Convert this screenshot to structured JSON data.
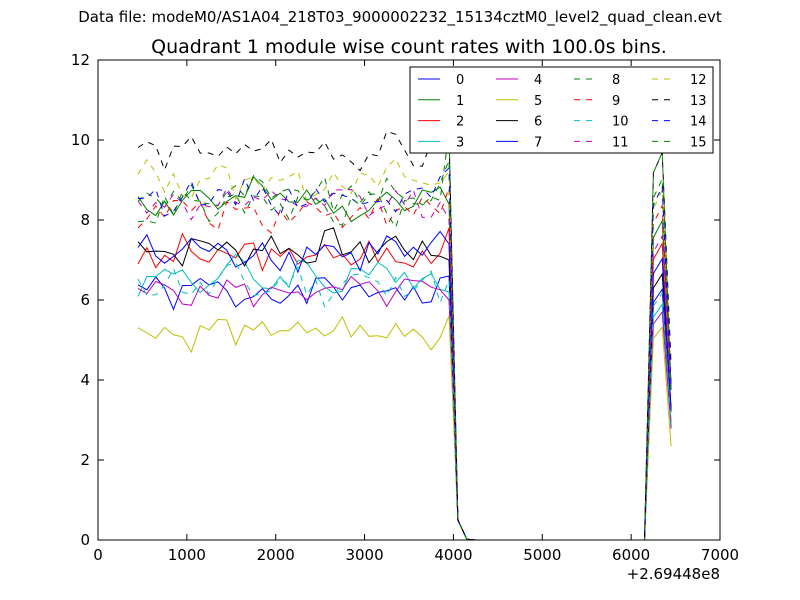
{
  "figure": {
    "caption": "Data file: modeM0/AS1A04_218T03_9000002232_15134cztM0_level2_quad_clean.evt"
  },
  "chart_data": {
    "type": "line",
    "title": "Quadrant 1 module wise count rates with 100.0s bins.",
    "xlabel": "",
    "ylabel": "",
    "xlim": [
      0,
      7000
    ],
    "ylim": [
      0,
      12
    ],
    "x_offset_label": "+2.69448e8",
    "x_ticks": [
      "0",
      "1000",
      "2000",
      "3000",
      "4000",
      "5000",
      "6000",
      "7000"
    ],
    "y_ticks": [
      "0",
      "2",
      "4",
      "6",
      "8",
      "10",
      "12"
    ],
    "grid": false,
    "legend_position": "top-right",
    "legend_columns": 4,
    "series": [
      {
        "name": "0",
        "color": "#0000ff",
        "dash": "solid",
        "baseline": 6.2,
        "amp": 0.35,
        "seed": 1,
        "peak": 6.6
      },
      {
        "name": "1",
        "color": "#008000",
        "dash": "solid",
        "baseline": 8.5,
        "amp": 0.4,
        "seed": 2,
        "peak": 8.4
      },
      {
        "name": "2",
        "color": "#ff0000",
        "dash": "solid",
        "baseline": 7.1,
        "amp": 0.4,
        "seed": 3,
        "peak": 7.8
      },
      {
        "name": "3",
        "color": "#00bfbf",
        "dash": "solid",
        "baseline": 6.6,
        "amp": 0.4,
        "seed": 4,
        "peak": 6.2
      },
      {
        "name": "4",
        "color": "#bf00bf",
        "dash": "solid",
        "baseline": 6.2,
        "amp": 0.3,
        "seed": 5,
        "peak": 6.0
      },
      {
        "name": "5",
        "color": "#bfbf00",
        "dash": "solid",
        "baseline": 5.2,
        "amp": 0.35,
        "seed": 6,
        "peak": 5.6
      },
      {
        "name": "6",
        "color": "#000000",
        "dash": "solid",
        "baseline": 7.3,
        "amp": 0.35,
        "seed": 7,
        "peak": 7.0
      },
      {
        "name": "7",
        "color": "#0000ff",
        "dash": "solid",
        "baseline": 7.2,
        "amp": 0.4,
        "seed": 8,
        "peak": 7.4
      },
      {
        "name": "8",
        "color": "#008000",
        "dash": "dashed",
        "baseline": 8.6,
        "amp": 0.4,
        "seed": 9,
        "peak": 9.5
      },
      {
        "name": "9",
        "color": "#ff0000",
        "dash": "dashed",
        "baseline": 8.2,
        "amp": 0.35,
        "seed": 10,
        "peak": 8.8
      },
      {
        "name": "10",
        "color": "#00bfbf",
        "dash": "dashed",
        "baseline": 6.4,
        "amp": 0.4,
        "seed": 11,
        "peak": 6.5
      },
      {
        "name": "11",
        "color": "#bf00bf",
        "dash": "dashed",
        "baseline": 8.4,
        "amp": 0.35,
        "seed": 12,
        "peak": 8.0
      },
      {
        "name": "12",
        "color": "#bfbf00",
        "dash": "dashed",
        "baseline": 9.0,
        "amp": 0.4,
        "seed": 13,
        "peak": 9.2
      },
      {
        "name": "13",
        "color": "#000000",
        "dash": "dashed",
        "baseline": 9.7,
        "amp": 0.35,
        "seed": 14,
        "peak": 10.2
      },
      {
        "name": "14",
        "color": "#0000ff",
        "dash": "dashed",
        "baseline": 8.6,
        "amp": 0.35,
        "seed": 15,
        "peak": 9.3
      },
      {
        "name": "15",
        "color": "#008000",
        "dash": "dashed",
        "baseline": 8.3,
        "amp": 0.35,
        "seed": 16,
        "peak": 10.2
      }
    ]
  }
}
